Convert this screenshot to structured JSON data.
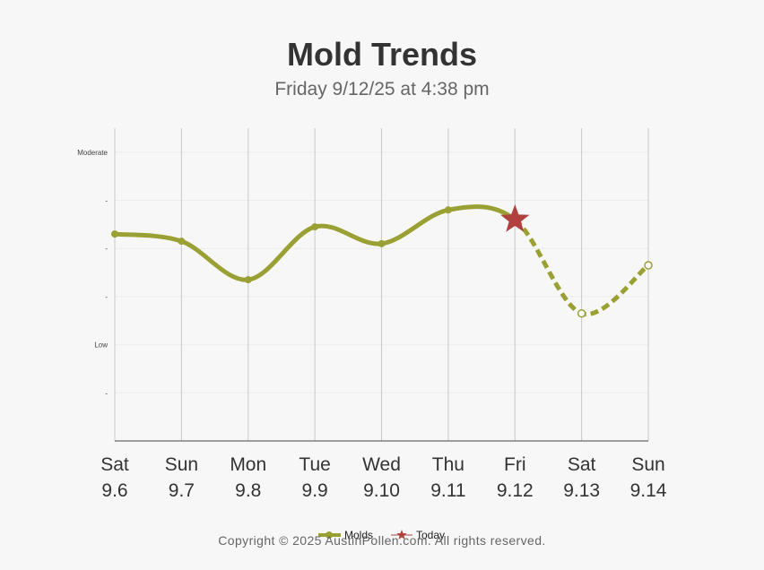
{
  "header": {
    "title": "Mold Trends",
    "subtitle": "Friday 9/12/25 at 4:38 pm"
  },
  "footer": {
    "copyright": "Copyright © 2025 AustinPollen.com.  All rights reserved."
  },
  "colors": {
    "series": "#9aa033",
    "today": "#b0413e",
    "grid_major": "#c8c8c8",
    "grid_minor": "#ececec",
    "axis": "#444444"
  },
  "chart_data": {
    "type": "line",
    "categories": [
      {
        "day": "Sat",
        "date": "9.6"
      },
      {
        "day": "Sun",
        "date": "9.7"
      },
      {
        "day": "Mon",
        "date": "9.8"
      },
      {
        "day": "Tue",
        "date": "9.9"
      },
      {
        "day": "Wed",
        "date": "9.10"
      },
      {
        "day": "Thu",
        "date": "9.11"
      },
      {
        "day": "Fri",
        "date": "9.12"
      },
      {
        "day": "Sat",
        "date": "9.13"
      },
      {
        "day": "Sun",
        "date": "9.14"
      }
    ],
    "y_ticks": [
      {
        "value": 1,
        "label": "-"
      },
      {
        "value": 2,
        "label": "Low"
      },
      {
        "value": 3,
        "label": "-"
      },
      {
        "value": 4,
        "label": "-"
      },
      {
        "value": 5,
        "label": "-"
      },
      {
        "value": 6,
        "label": "Moderate"
      }
    ],
    "ylim": [
      0,
      6.5
    ],
    "series": [
      {
        "name": "Molds",
        "values": [
          4.3,
          4.15,
          3.35,
          4.45,
          4.1,
          4.8,
          4.6,
          2.65,
          3.65
        ],
        "forecast_from_index": 6
      }
    ],
    "today_index": 6,
    "legend": {
      "position": "bottom",
      "items": [
        {
          "label": "Molds",
          "marker": "line-dot"
        },
        {
          "label": "Today",
          "marker": "star"
        }
      ]
    },
    "grid": true
  }
}
